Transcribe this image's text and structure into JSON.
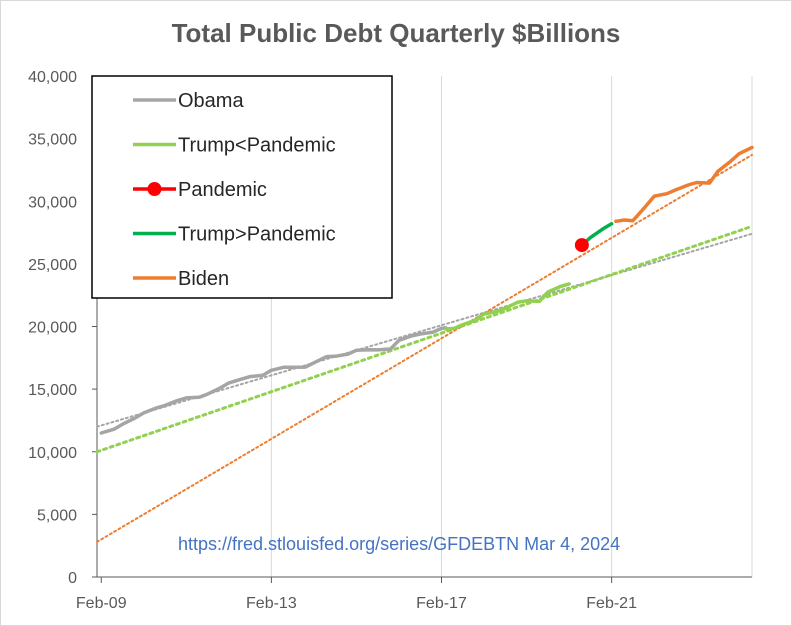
{
  "chart_data": {
    "type": "line",
    "title": "Total Public Debt Quarterly $Billions",
    "source_note": "https://fred.stlouisfed.org/series/GFDEBTN Mar 4, 2024",
    "x_ticks": [
      "Feb-09",
      "Feb-13",
      "Feb-17",
      "Feb-21"
    ],
    "y_ticks": [
      "0",
      "5,000",
      "10,000",
      "15,000",
      "20,000",
      "25,000",
      "30,000",
      "35,000",
      "40,000"
    ],
    "ylim": [
      0,
      40000
    ],
    "xlim": [
      2009.0,
      2024.4
    ],
    "grid": "vertical",
    "legend_position": "top-left",
    "series": [
      {
        "name": "Obama",
        "color": "#a5a5a5",
        "marker": "none",
        "points": [
          [
            2009.1,
            11500
          ],
          [
            2009.4,
            11800
          ],
          [
            2009.6,
            12200
          ],
          [
            2009.9,
            12700
          ],
          [
            2010.1,
            13100
          ],
          [
            2010.4,
            13500
          ],
          [
            2010.6,
            13700
          ],
          [
            2010.9,
            14100
          ],
          [
            2011.1,
            14300
          ],
          [
            2011.4,
            14350
          ],
          [
            2011.6,
            14600
          ],
          [
            2011.9,
            15100
          ],
          [
            2012.1,
            15500
          ],
          [
            2012.4,
            15800
          ],
          [
            2012.6,
            16000
          ],
          [
            2012.9,
            16100
          ],
          [
            2013.1,
            16500
          ],
          [
            2013.4,
            16750
          ],
          [
            2013.6,
            16740
          ],
          [
            2013.9,
            16760
          ],
          [
            2014.1,
            17100
          ],
          [
            2014.4,
            17600
          ],
          [
            2014.6,
            17620
          ],
          [
            2014.9,
            17800
          ],
          [
            2015.1,
            18100
          ],
          [
            2015.4,
            18150
          ],
          [
            2015.6,
            18130
          ],
          [
            2015.9,
            18200
          ],
          [
            2016.1,
            18900
          ],
          [
            2016.4,
            19250
          ],
          [
            2016.6,
            19400
          ],
          [
            2016.9,
            19550
          ],
          [
            2017.1,
            19850
          ],
          [
            2017.2,
            19900
          ]
        ]
      },
      {
        "name": "Trump<Pandemic",
        "color": "#92d050",
        "marker": "none",
        "points": [
          [
            2017.2,
            19800
          ],
          [
            2017.4,
            19850
          ],
          [
            2017.6,
            20150
          ],
          [
            2017.9,
            20500
          ],
          [
            2018.1,
            21000
          ],
          [
            2018.4,
            21200
          ],
          [
            2018.6,
            21450
          ],
          [
            2018.9,
            21950
          ],
          [
            2019.1,
            22050
          ],
          [
            2019.4,
            22000
          ],
          [
            2019.6,
            22750
          ],
          [
            2019.9,
            23200
          ],
          [
            2020.1,
            23400
          ]
        ]
      },
      {
        "name": "Pandemic",
        "color": "#ff0000",
        "marker": "circle",
        "points": [
          [
            2020.4,
            26500
          ]
        ]
      },
      {
        "name": "Trump>Pandemic",
        "color": "#00b050",
        "marker": "none",
        "points": [
          [
            2020.4,
            26500
          ],
          [
            2020.6,
            27100
          ],
          [
            2020.9,
            27800
          ],
          [
            2021.1,
            28200
          ]
        ]
      },
      {
        "name": "Biden",
        "color": "#ed7d31",
        "marker": "none",
        "points": [
          [
            2021.2,
            28400
          ],
          [
            2021.4,
            28500
          ],
          [
            2021.6,
            28450
          ],
          [
            2021.9,
            29600
          ],
          [
            2022.1,
            30400
          ],
          [
            2022.4,
            30600
          ],
          [
            2022.6,
            30900
          ],
          [
            2022.9,
            31300
          ],
          [
            2023.1,
            31500
          ],
          [
            2023.4,
            31450
          ],
          [
            2023.6,
            32400
          ],
          [
            2023.9,
            33200
          ],
          [
            2024.1,
            33800
          ],
          [
            2024.4,
            34300
          ]
        ]
      }
    ],
    "trendlines": [
      {
        "of": "Obama",
        "color": "#a5a5a5",
        "points": [
          [
            2009.0,
            12000
          ],
          [
            2024.4,
            27400
          ]
        ]
      },
      {
        "of": "Trump<Pandemic",
        "color": "#92d050",
        "points": [
          [
            2009.0,
            10000
          ],
          [
            2024.4,
            28000
          ]
        ]
      },
      {
        "of": "Biden",
        "color": "#ed7d31",
        "points": [
          [
            2009.0,
            2800
          ],
          [
            2024.4,
            33700
          ]
        ]
      }
    ]
  }
}
